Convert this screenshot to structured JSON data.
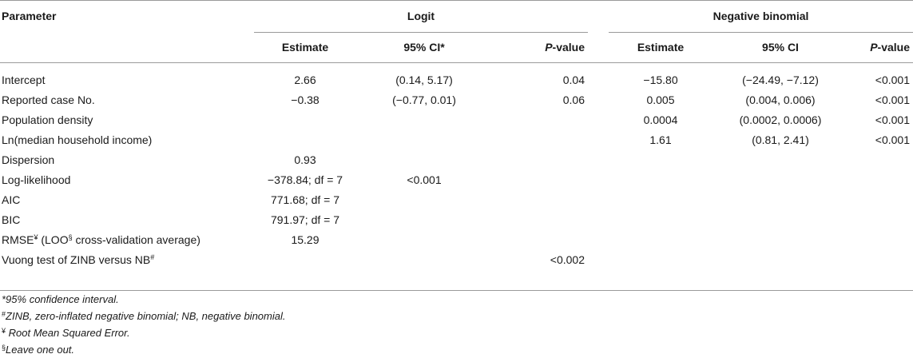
{
  "header": {
    "parameter": "Parameter",
    "logit": "Logit",
    "negative_binomial": "Negative binomial",
    "estimate": "Estimate",
    "ci_logit": "95% CI*",
    "ci_nb": "95% CI",
    "p_italic": "P",
    "p_rest": "-value"
  },
  "rows": [
    {
      "param": "Intercept",
      "l_est": "2.66",
      "l_ci": "(0.14, 5.17)",
      "l_p": "0.04",
      "n_est": "−15.80",
      "n_ci": "(−24.49, −7.12)",
      "n_p": "<0.001"
    },
    {
      "param": "Reported case No.",
      "l_est": "−0.38",
      "l_ci": "(−0.77, 0.01)",
      "l_p": "0.06",
      "n_est": "0.005",
      "n_ci": "(0.004, 0.006)",
      "n_p": "<0.001"
    },
    {
      "param": "Population density",
      "l_est": "",
      "l_ci": "",
      "l_p": "",
      "n_est": "0.0004",
      "n_ci": "(0.0002, 0.0006)",
      "n_p": "<0.001"
    },
    {
      "param": "Ln(median household income)",
      "l_est": "",
      "l_ci": "",
      "l_p": "",
      "n_est": "1.61",
      "n_ci": "(0.81, 2.41)",
      "n_p": "<0.001"
    },
    {
      "param": "Dispersion",
      "l_est": "0.93",
      "l_ci": "",
      "l_p": "",
      "n_est": "",
      "n_ci": "",
      "n_p": ""
    },
    {
      "param": "Log-likelihood",
      "l_est": "−378.84; df = 7",
      "l_ci": "<0.001",
      "l_p": "",
      "n_est": "",
      "n_ci": "",
      "n_p": ""
    },
    {
      "param": "AIC",
      "l_est": "771.68; df = 7",
      "l_ci": "",
      "l_p": "",
      "n_est": "",
      "n_ci": "",
      "n_p": ""
    },
    {
      "param": "BIC",
      "l_est": "791.97; df = 7",
      "l_ci": "",
      "l_p": "",
      "n_est": "",
      "n_ci": "",
      "n_p": ""
    }
  ],
  "rmse_row": {
    "a": "RMSE",
    "sym": "¥",
    "b": " (LOO",
    "sym2": "§",
    "c": " cross-validation average)",
    "l_est": "15.29"
  },
  "vuong_row": {
    "a": "Vuong test of ZINB versus NB",
    "sym": "#",
    "l_p": "<0.002"
  },
  "footnotes": [
    {
      "mark": "",
      "text": "*95% confidence interval."
    },
    {
      "mark": "#",
      "text": "ZINB, zero-inflated negative binomial; NB, negative binomial."
    },
    {
      "mark": "¥",
      "text": " Root Mean Squared Error."
    },
    {
      "mark": "§",
      "text": "Leave one out."
    }
  ]
}
